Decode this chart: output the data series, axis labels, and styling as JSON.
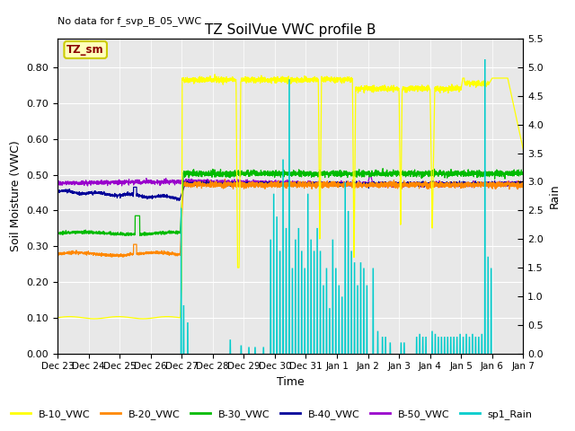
{
  "title": "TZ SoilVue VWC profile B",
  "no_data_text": "No data for f_svp_B_05_VWC",
  "tz_sm_label": "TZ_sm",
  "xlabel": "Time",
  "ylabel": "Soil Moisture (VWC)",
  "ylabel_right": "Rain",
  "ylim_left": [
    0.0,
    0.88
  ],
  "ylim_right": [
    0.0,
    5.5
  ],
  "yticks_left": [
    0.0,
    0.1,
    0.2,
    0.3,
    0.4,
    0.5,
    0.6,
    0.7,
    0.8
  ],
  "yticks_right": [
    0.0,
    0.5,
    1.0,
    1.5,
    2.0,
    2.5,
    3.0,
    3.5,
    4.0,
    4.5,
    5.0,
    5.5
  ],
  "xticklabels": [
    "Dec 23",
    "Dec 24",
    "Dec 25",
    "Dec 26",
    "Dec 27",
    "Dec 28",
    "Dec 29",
    "Dec 30",
    "Dec 31",
    "Jan 1",
    "Jan 2",
    "Jan 3",
    "Jan 4",
    "Jan 5",
    "Jan 6",
    "Jan 7"
  ],
  "bg_color": "#e8e8e8",
  "legend_entries": [
    "B-10_VWC",
    "B-20_VWC",
    "B-30_VWC",
    "B-40_VWC",
    "B-50_VWC",
    "sp1_Rain"
  ],
  "legend_colors": [
    "#ffff00",
    "#ff8800",
    "#00bb00",
    "#000099",
    "#9900cc",
    "#00cccc"
  ],
  "line_colors": {
    "B10": "#ffff00",
    "B20": "#ff8800",
    "B30": "#00bb00",
    "B40": "#000099",
    "B50": "#9900cc",
    "Rain": "#00cccc"
  }
}
